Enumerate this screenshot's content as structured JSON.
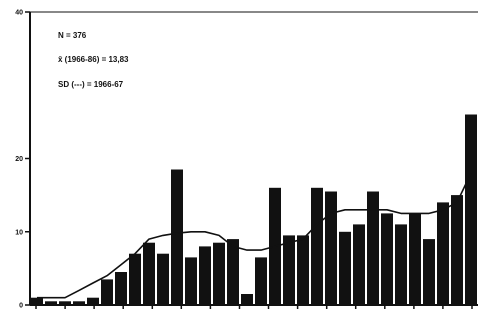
{
  "chart_data": {
    "type": "bar",
    "title": "",
    "xlabel": "",
    "ylabel": "",
    "ylim": [
      0,
      40
    ],
    "y_ticks": [
      "0",
      "10",
      "20",
      "40"
    ],
    "y_tick_values": [
      0,
      10,
      20,
      40
    ],
    "x_tick_labels": [
      "",
      "",
      "",
      "",
      "",
      "",
      "",
      "",
      "",
      "",
      "",
      "",
      "",
      "",
      "",
      ""
    ],
    "annotations": [
      "N = 376",
      "x̄ (1966-86) = 13,83",
      "SD (---) = 1966-67"
    ],
    "grid": false,
    "series": [
      {
        "type": "bar",
        "values": [
          1,
          0.5,
          0.5,
          0.5,
          1,
          3.5,
          4.5,
          7,
          8.5,
          7,
          18.5,
          6.5,
          8,
          8.5,
          9,
          1.5,
          6.5,
          16,
          9.5,
          9.5,
          16,
          15.5,
          10,
          11,
          15.5,
          12.5,
          11,
          12.5,
          9,
          14,
          15,
          26
        ]
      },
      {
        "type": "line",
        "values": [
          1,
          1,
          1,
          2,
          3,
          4,
          5.5,
          7,
          9,
          9.5,
          9.8,
          10,
          10,
          9.5,
          8,
          7.5,
          7.5,
          8,
          8.5,
          9,
          11,
          12.5,
          13,
          13,
          13,
          13,
          12.5,
          12.5,
          12.5,
          13,
          14,
          18
        ]
      }
    ]
  }
}
